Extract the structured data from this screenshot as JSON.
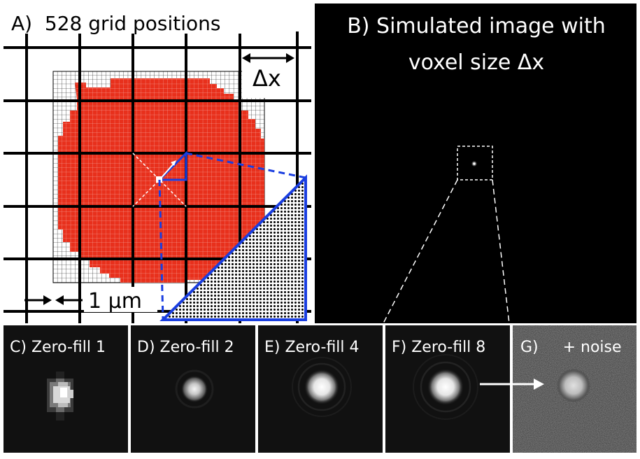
{
  "panel_a": {
    "title": "A)  528 grid positions",
    "delta_label": "Δx",
    "scale_label": "1 μm"
  },
  "panel_b": {
    "title_line1": "B) Simulated image with",
    "title_line2": "voxel size Δx"
  },
  "bottom_panels": [
    {
      "label": "C) Zero-fill 1"
    },
    {
      "label": "D) Zero-fill 2"
    },
    {
      "label": "E) Zero-fill 4"
    },
    {
      "label": "F) Zero-fill 8"
    },
    {
      "label": "G)     + noise"
    }
  ],
  "colors": {
    "cell_red": "#e8301c",
    "zoom_blue": "#1a3ee0",
    "background_dark": "#000000"
  }
}
